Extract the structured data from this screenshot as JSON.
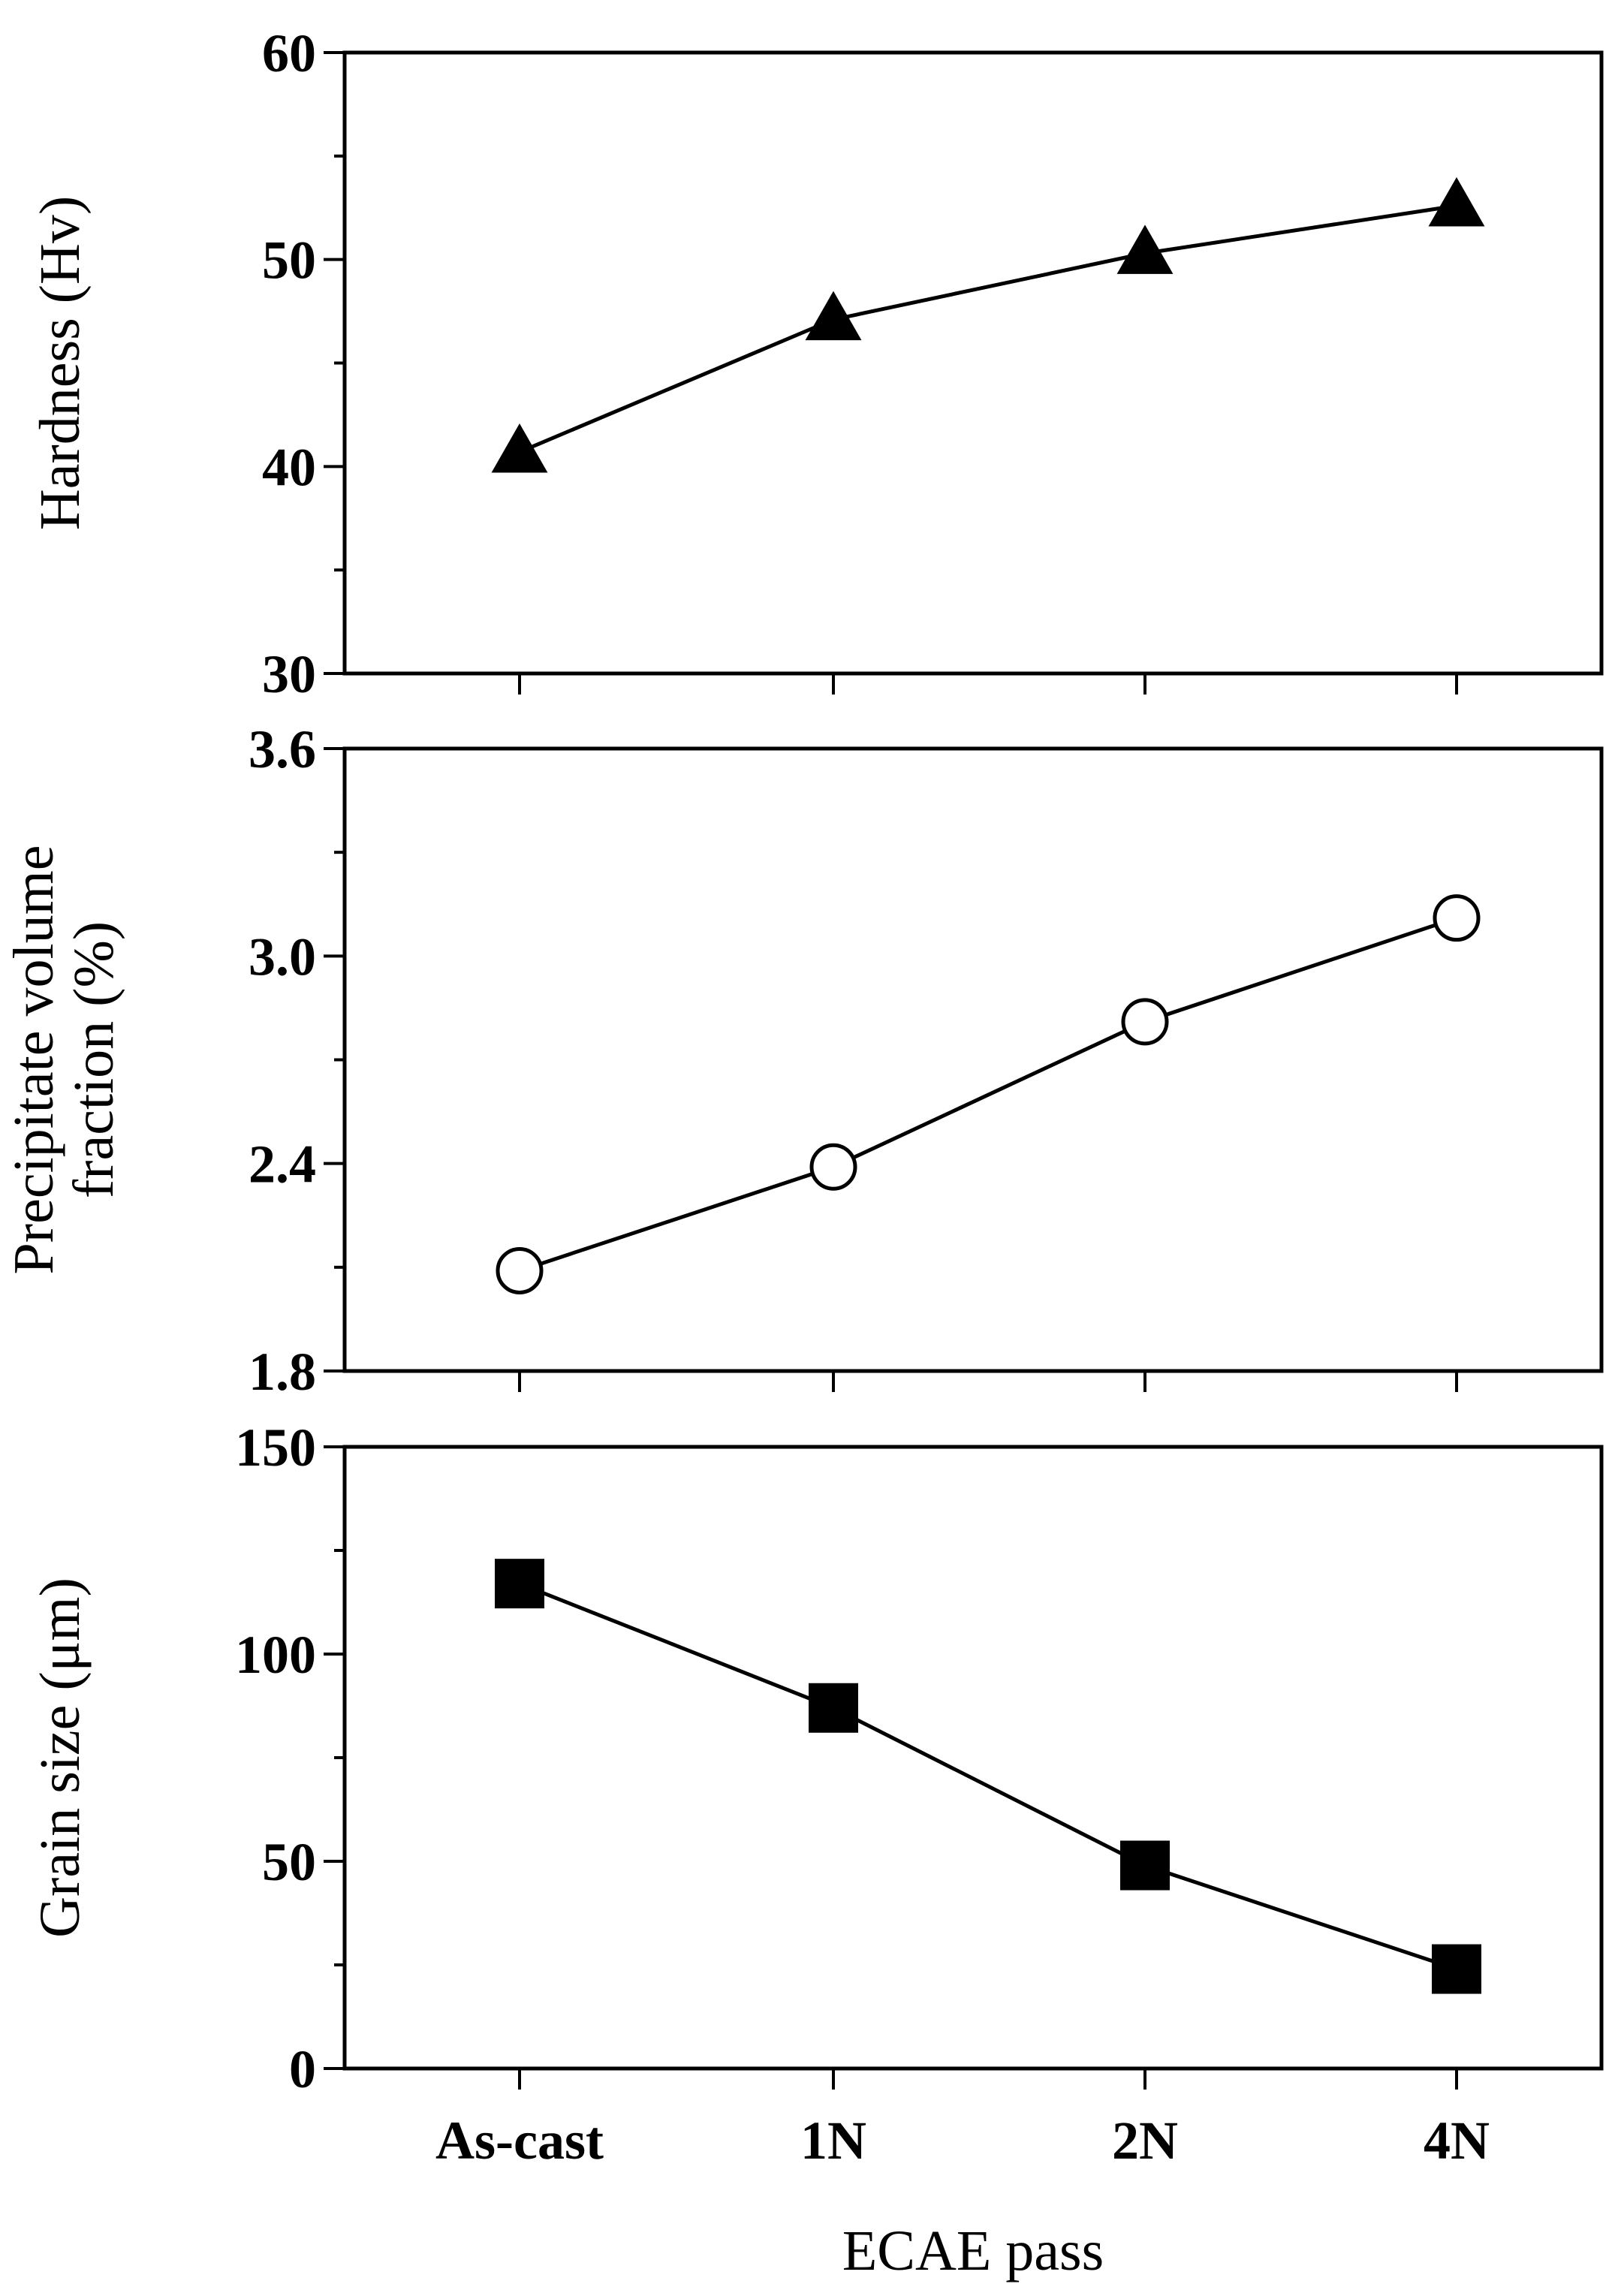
{
  "chart_data": [
    {
      "type": "line",
      "categories": [
        "As-cast",
        "1N",
        "2N",
        "4N"
      ],
      "values": [
        40.7,
        47.1,
        50.3,
        52.6
      ],
      "ylabel": "Hardness (Hv)",
      "ylim": [
        30,
        60
      ],
      "yticks": [
        30,
        40,
        50,
        60
      ],
      "ytick_labels": [
        "30",
        "40",
        "50",
        "60"
      ],
      "marker": "filled-triangle",
      "show_xtick_labels": false
    },
    {
      "type": "line",
      "categories": [
        "As-cast",
        "1N",
        "2N",
        "4N"
      ],
      "values": [
        2.09,
        2.39,
        2.81,
        3.11
      ],
      "ylabel_lines": [
        "Precipitate volume",
        "fraction (%)"
      ],
      "ylim": [
        1.8,
        3.6
      ],
      "yticks": [
        1.8,
        2.4,
        3.0,
        3.6
      ],
      "ytick_labels": [
        "1.8",
        "2.4",
        "3.0",
        "3.6"
      ],
      "marker": "open-circle",
      "show_xtick_labels": false
    },
    {
      "type": "line",
      "categories": [
        "As-cast",
        "1N",
        "2N",
        "4N"
      ],
      "values": [
        117,
        87,
        49,
        24
      ],
      "ylabel": "Grain size (μm)",
      "ylim": [
        0,
        150
      ],
      "yticks": [
        0,
        50,
        100,
        150
      ],
      "ytick_labels": [
        "0",
        "50",
        "100",
        "150"
      ],
      "marker": "filled-square",
      "show_xtick_labels": true,
      "xlabel": "ECAE pass"
    }
  ]
}
